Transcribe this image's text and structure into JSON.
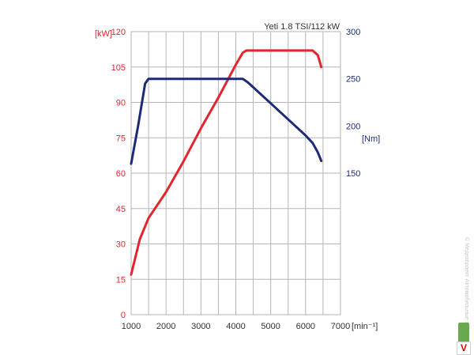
{
  "chart_data": {
    "type": "line",
    "title": "Yeti 1.8 TSI/112 kW",
    "x_axis": {
      "label": "[min⁻¹]",
      "range": [
        1000,
        7000
      ],
      "ticks": [
        1000,
        2000,
        3000,
        4000,
        5000,
        6000,
        7000
      ]
    },
    "y_axis_left": {
      "label": "[kW]",
      "range": [
        0,
        120
      ],
      "ticks": [
        0,
        15,
        30,
        45,
        60,
        75,
        90,
        105,
        120
      ],
      "color": "#e3262d"
    },
    "y_axis_right": {
      "label": "[Nm]",
      "range": [
        0,
        300
      ],
      "ticks": [
        150,
        200,
        250,
        300
      ],
      "color": "#1e2a78"
    },
    "grid": true,
    "series": [
      {
        "axis": "left",
        "color": "#e3262d",
        "points": [
          [
            1000,
            17
          ],
          [
            1250,
            32
          ],
          [
            1500,
            41
          ],
          [
            2000,
            52
          ],
          [
            2500,
            65
          ],
          [
            3000,
            79
          ],
          [
            3500,
            92
          ],
          [
            4000,
            106
          ],
          [
            4200,
            111
          ],
          [
            4300,
            112
          ],
          [
            5000,
            112
          ],
          [
            6000,
            112
          ],
          [
            6200,
            112
          ],
          [
            6350,
            110
          ],
          [
            6450,
            105
          ]
        ]
      },
      {
        "axis": "right",
        "color": "#1e2a78",
        "points": [
          [
            1000,
            160
          ],
          [
            1200,
            200
          ],
          [
            1400,
            245
          ],
          [
            1500,
            250
          ],
          [
            2000,
            250
          ],
          [
            3000,
            250
          ],
          [
            4000,
            250
          ],
          [
            4200,
            250
          ],
          [
            4350,
            246
          ],
          [
            5000,
            224
          ],
          [
            6000,
            190
          ],
          [
            6200,
            182
          ],
          [
            6350,
            172
          ],
          [
            6450,
            163
          ]
        ]
      }
    ]
  },
  "watermark": {
    "text": "© Медиапроект Автомобильные журналы",
    "logo": "V"
  }
}
